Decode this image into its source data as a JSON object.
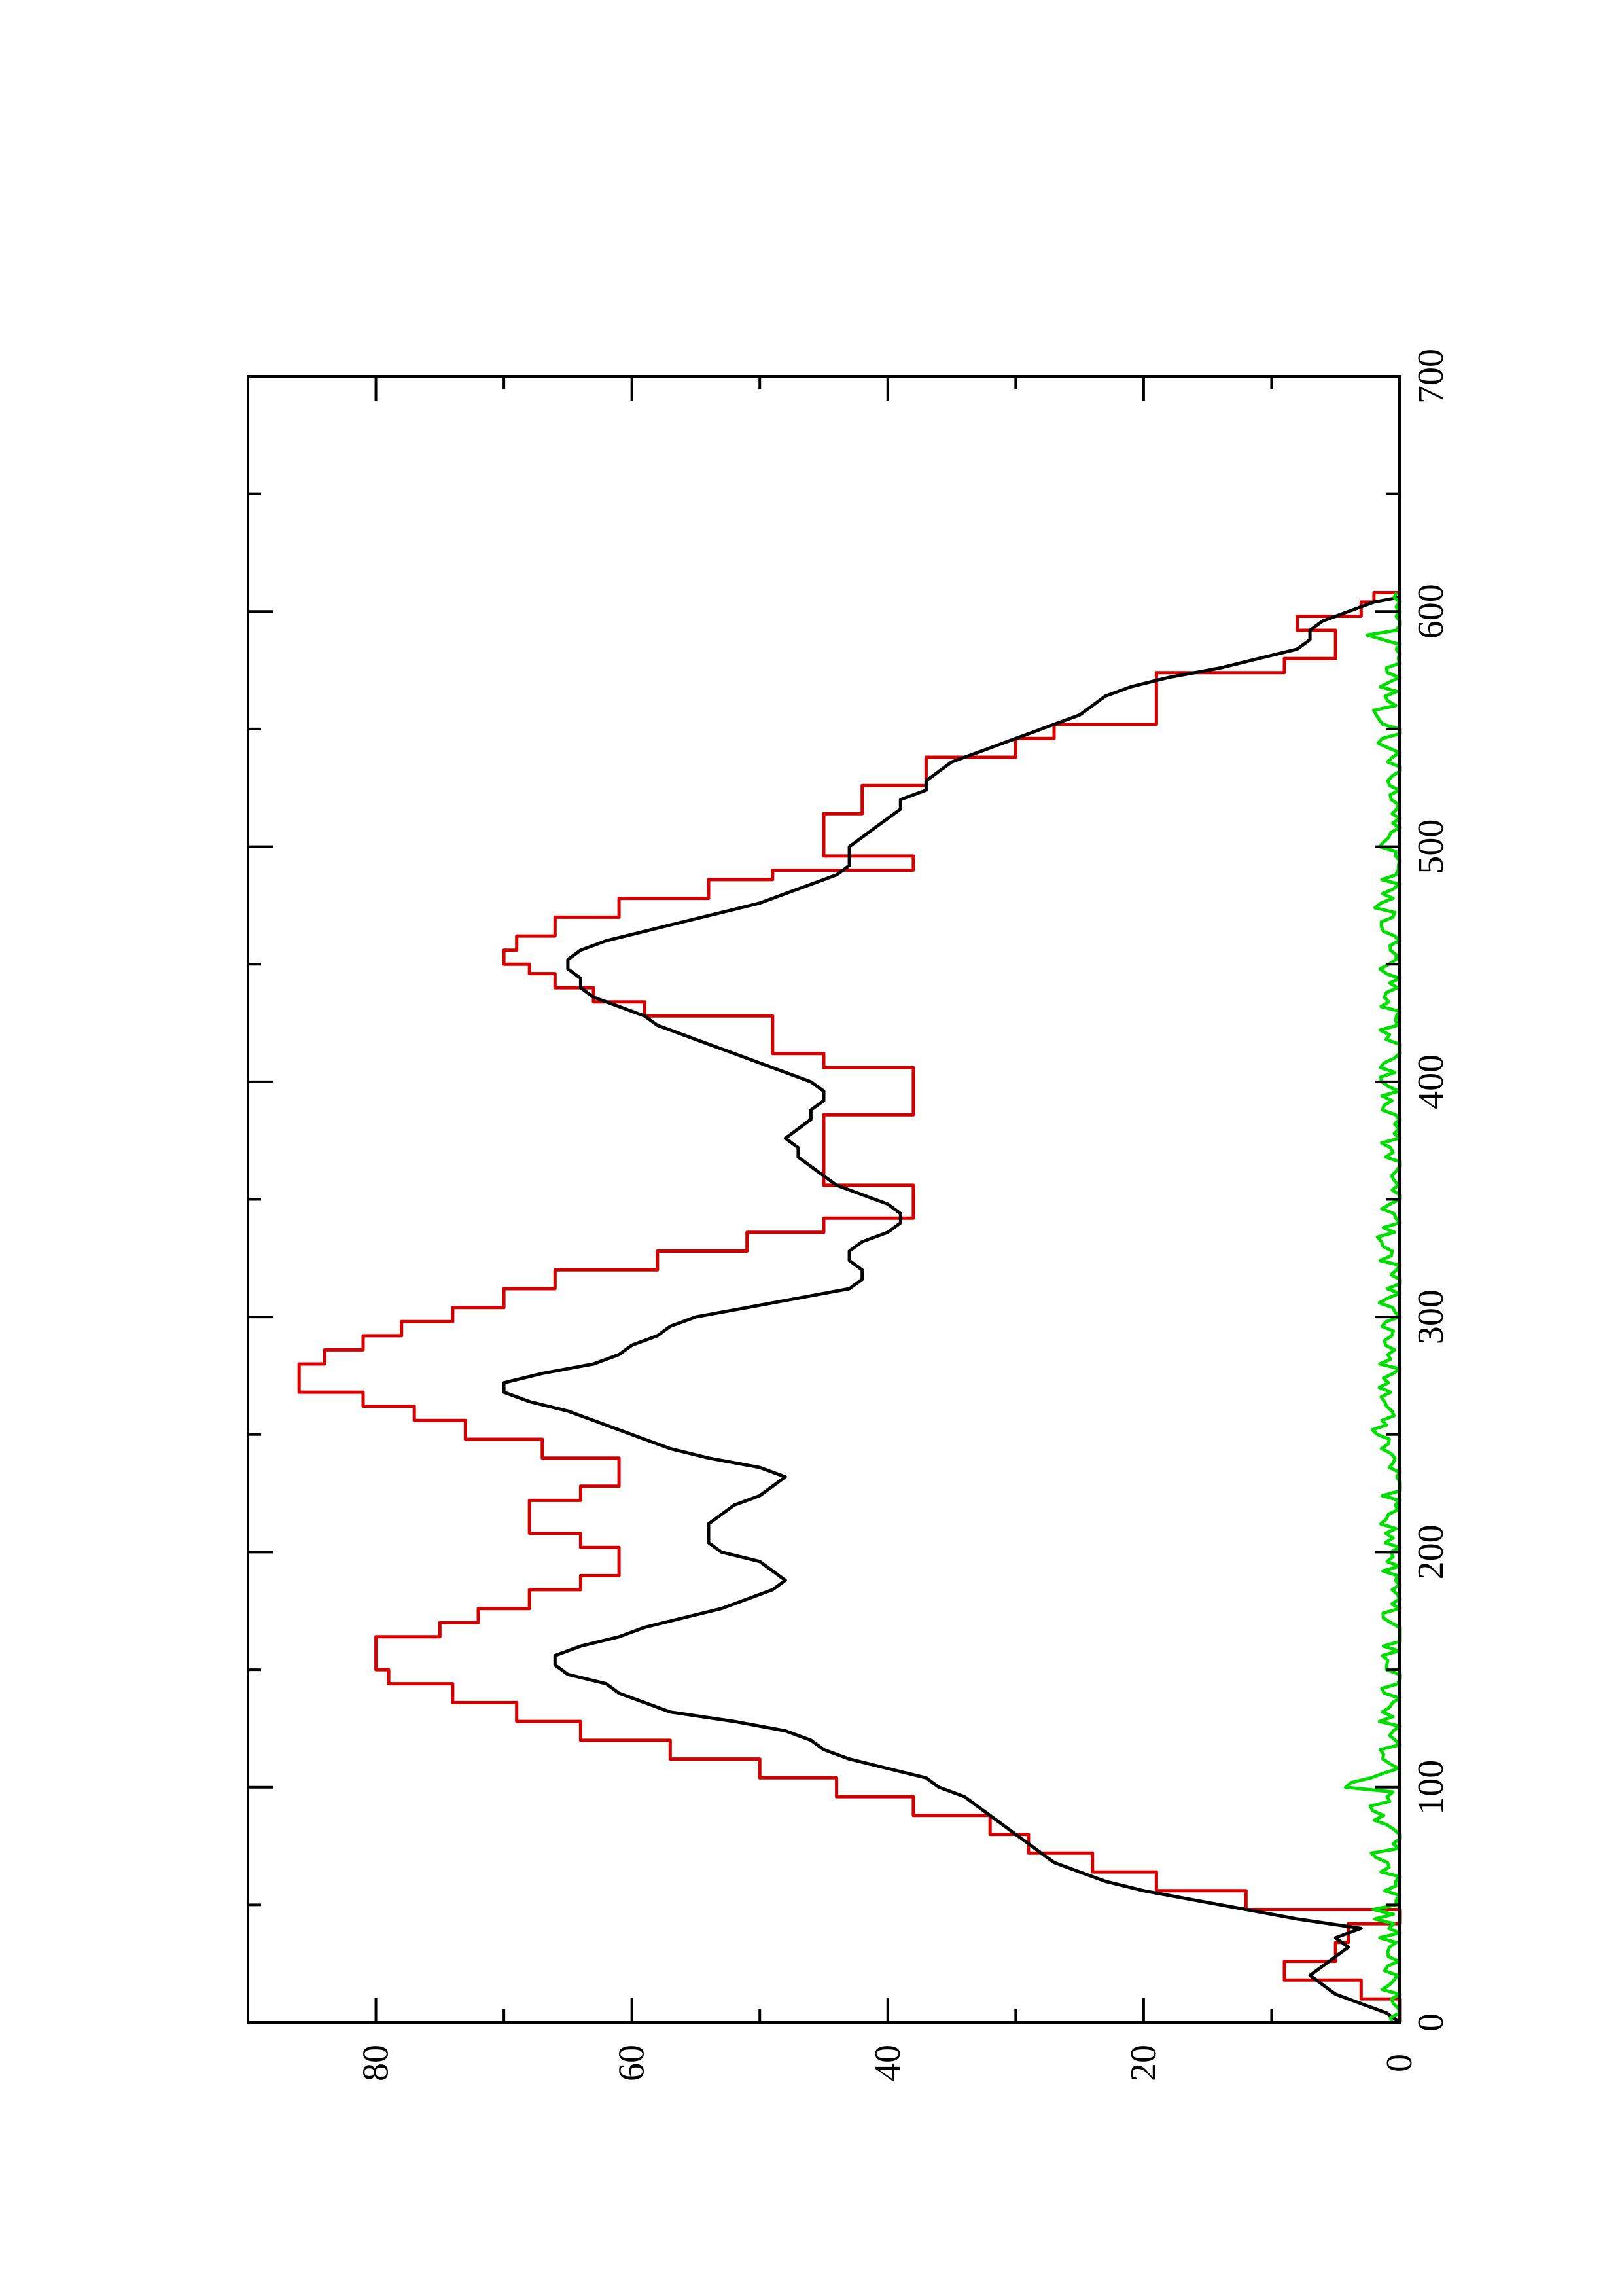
{
  "chart_data": {
    "type": "line",
    "orientation": "rotated-90-ccw",
    "title": "",
    "xlabel": "",
    "ylabel": "",
    "xlim": [
      0,
      700
    ],
    "ylim": [
      0,
      90
    ],
    "x_ticks": [
      0,
      100,
      200,
      300,
      400,
      500,
      600,
      700
    ],
    "y_ticks": [
      0,
      20,
      40,
      60,
      80
    ],
    "x_minor_step": 50,
    "y_minor_step": 10,
    "grid": false,
    "legend": "none",
    "series": [
      {
        "color": "#d40000",
        "style": "step",
        "points": [
          [
            0,
            0
          ],
          [
            10,
            3
          ],
          [
            18,
            9
          ],
          [
            26,
            5
          ],
          [
            34,
            4
          ],
          [
            42,
            0
          ],
          [
            48,
            12
          ],
          [
            56,
            19
          ],
          [
            64,
            24
          ],
          [
            72,
            29
          ],
          [
            80,
            32
          ],
          [
            88,
            38
          ],
          [
            96,
            44
          ],
          [
            104,
            50
          ],
          [
            112,
            57
          ],
          [
            120,
            64
          ],
          [
            128,
            69
          ],
          [
            136,
            74
          ],
          [
            144,
            79
          ],
          [
            150,
            80
          ],
          [
            158,
            80
          ],
          [
            164,
            75
          ],
          [
            170,
            72
          ],
          [
            176,
            68
          ],
          [
            184,
            64
          ],
          [
            190,
            61
          ],
          [
            196,
            61
          ],
          [
            202,
            64
          ],
          [
            208,
            68
          ],
          [
            214,
            68
          ],
          [
            222,
            64
          ],
          [
            228,
            61
          ],
          [
            234,
            61
          ],
          [
            240,
            67
          ],
          [
            248,
            73
          ],
          [
            256,
            77
          ],
          [
            262,
            81
          ],
          [
            268,
            86
          ],
          [
            274,
            86
          ],
          [
            280,
            84
          ],
          [
            286,
            81
          ],
          [
            292,
            78
          ],
          [
            298,
            74
          ],
          [
            304,
            70
          ],
          [
            312,
            66
          ],
          [
            320,
            58
          ],
          [
            328,
            51
          ],
          [
            336,
            45
          ],
          [
            342,
            38
          ],
          [
            350,
            38
          ],
          [
            356,
            45
          ],
          [
            364,
            45
          ],
          [
            372,
            45
          ],
          [
            380,
            45
          ],
          [
            386,
            38
          ],
          [
            392,
            38
          ],
          [
            400,
            38
          ],
          [
            406,
            45
          ],
          [
            412,
            49
          ],
          [
            420,
            49
          ],
          [
            428,
            59
          ],
          [
            434,
            63
          ],
          [
            440,
            66
          ],
          [
            446,
            68
          ],
          [
            450,
            70
          ],
          [
            456,
            69
          ],
          [
            462,
            66
          ],
          [
            470,
            61
          ],
          [
            478,
            54
          ],
          [
            486,
            49
          ],
          [
            490,
            38
          ],
          [
            496,
            45
          ],
          [
            504,
            45
          ],
          [
            510,
            45
          ],
          [
            514,
            42
          ],
          [
            520,
            42
          ],
          [
            526,
            37
          ],
          [
            532,
            37
          ],
          [
            538,
            30
          ],
          [
            546,
            27
          ],
          [
            552,
            19
          ],
          [
            558,
            19
          ],
          [
            566,
            19
          ],
          [
            574,
            9
          ],
          [
            580,
            5
          ],
          [
            586,
            5
          ],
          [
            592,
            8
          ],
          [
            598,
            3
          ],
          [
            604,
            2
          ],
          [
            608,
            0
          ]
        ]
      },
      {
        "color": "#000000",
        "style": "line",
        "points": [
          [
            0,
            0
          ],
          [
            4,
            1
          ],
          [
            8,
            3
          ],
          [
            12,
            5
          ],
          [
            16,
            6
          ],
          [
            20,
            7
          ],
          [
            24,
            6
          ],
          [
            28,
            5
          ],
          [
            32,
            4
          ],
          [
            36,
            5
          ],
          [
            40,
            3
          ],
          [
            44,
            8
          ],
          [
            48,
            12
          ],
          [
            52,
            16
          ],
          [
            56,
            20
          ],
          [
            60,
            23
          ],
          [
            64,
            25
          ],
          [
            68,
            27
          ],
          [
            72,
            28
          ],
          [
            76,
            29
          ],
          [
            80,
            30
          ],
          [
            84,
            31
          ],
          [
            88,
            32
          ],
          [
            92,
            33
          ],
          [
            96,
            34
          ],
          [
            100,
            36
          ],
          [
            104,
            37
          ],
          [
            108,
            40
          ],
          [
            112,
            43
          ],
          [
            116,
            45
          ],
          [
            120,
            46
          ],
          [
            124,
            48
          ],
          [
            128,
            52
          ],
          [
            132,
            57
          ],
          [
            136,
            59
          ],
          [
            140,
            61
          ],
          [
            144,
            62
          ],
          [
            148,
            65
          ],
          [
            152,
            66
          ],
          [
            156,
            66
          ],
          [
            160,
            64
          ],
          [
            164,
            61
          ],
          [
            168,
            59
          ],
          [
            172,
            56
          ],
          [
            176,
            53
          ],
          [
            180,
            51
          ],
          [
            184,
            49
          ],
          [
            188,
            48
          ],
          [
            192,
            49
          ],
          [
            196,
            50
          ],
          [
            200,
            53
          ],
          [
            204,
            54
          ],
          [
            208,
            54
          ],
          [
            212,
            54
          ],
          [
            216,
            53
          ],
          [
            220,
            52
          ],
          [
            224,
            50
          ],
          [
            228,
            49
          ],
          [
            232,
            48
          ],
          [
            236,
            50
          ],
          [
            240,
            54
          ],
          [
            244,
            57
          ],
          [
            248,
            59
          ],
          [
            252,
            61
          ],
          [
            256,
            63
          ],
          [
            260,
            65
          ],
          [
            264,
            68
          ],
          [
            268,
            70
          ],
          [
            272,
            70
          ],
          [
            276,
            67
          ],
          [
            280,
            63
          ],
          [
            284,
            61
          ],
          [
            288,
            60
          ],
          [
            292,
            58
          ],
          [
            296,
            57
          ],
          [
            300,
            55
          ],
          [
            304,
            51
          ],
          [
            308,
            47
          ],
          [
            312,
            43
          ],
          [
            316,
            42
          ],
          [
            320,
            42
          ],
          [
            324,
            43
          ],
          [
            328,
            43
          ],
          [
            332,
            42
          ],
          [
            336,
            40
          ],
          [
            340,
            39
          ],
          [
            344,
            39
          ],
          [
            348,
            40
          ],
          [
            352,
            42
          ],
          [
            356,
            44
          ],
          [
            360,
            45
          ],
          [
            364,
            46
          ],
          [
            368,
            47
          ],
          [
            372,
            47
          ],
          [
            376,
            48
          ],
          [
            380,
            47
          ],
          [
            384,
            46
          ],
          [
            388,
            46
          ],
          [
            392,
            45
          ],
          [
            396,
            45
          ],
          [
            400,
            46
          ],
          [
            404,
            48
          ],
          [
            408,
            50
          ],
          [
            412,
            52
          ],
          [
            416,
            54
          ],
          [
            420,
            56
          ],
          [
            424,
            58
          ],
          [
            428,
            59
          ],
          [
            432,
            61
          ],
          [
            436,
            63
          ],
          [
            440,
            64
          ],
          [
            444,
            64
          ],
          [
            448,
            65
          ],
          [
            452,
            65
          ],
          [
            456,
            64
          ],
          [
            460,
            62
          ],
          [
            464,
            59
          ],
          [
            468,
            56
          ],
          [
            472,
            53
          ],
          [
            476,
            50
          ],
          [
            480,
            48
          ],
          [
            484,
            46
          ],
          [
            488,
            44
          ],
          [
            492,
            43
          ],
          [
            496,
            43
          ],
          [
            500,
            43
          ],
          [
            504,
            42
          ],
          [
            508,
            41
          ],
          [
            512,
            40
          ],
          [
            516,
            39
          ],
          [
            520,
            39
          ],
          [
            524,
            37
          ],
          [
            528,
            37
          ],
          [
            532,
            36
          ],
          [
            536,
            35
          ],
          [
            540,
            33
          ],
          [
            544,
            31
          ],
          [
            548,
            29
          ],
          [
            552,
            27
          ],
          [
            556,
            25
          ],
          [
            560,
            24
          ],
          [
            564,
            23
          ],
          [
            568,
            21
          ],
          [
            572,
            18
          ],
          [
            576,
            14
          ],
          [
            580,
            11
          ],
          [
            584,
            8
          ],
          [
            588,
            7
          ],
          [
            592,
            7
          ],
          [
            596,
            6
          ],
          [
            600,
            4
          ],
          [
            604,
            2
          ],
          [
            606,
            0
          ]
        ]
      },
      {
        "color": "#00dd00",
        "style": "line",
        "noise": true,
        "x_range": [
          0,
          608
        ],
        "y_baseline": 0.6,
        "y_amplitude": 1.0,
        "extra_bumps": [
          [
            30,
            1.8
          ],
          [
            45,
            2.2
          ],
          [
            70,
            2.5
          ],
          [
            90,
            3.4
          ],
          [
            100,
            3.6
          ],
          [
            110,
            2.0
          ],
          [
            195,
            1.8
          ],
          [
            250,
            1.6
          ],
          [
            330,
            1.6
          ],
          [
            390,
            1.9
          ],
          [
            470,
            1.9
          ],
          [
            540,
            2.3
          ],
          [
            560,
            2.1
          ],
          [
            590,
            2.0
          ]
        ]
      }
    ]
  }
}
